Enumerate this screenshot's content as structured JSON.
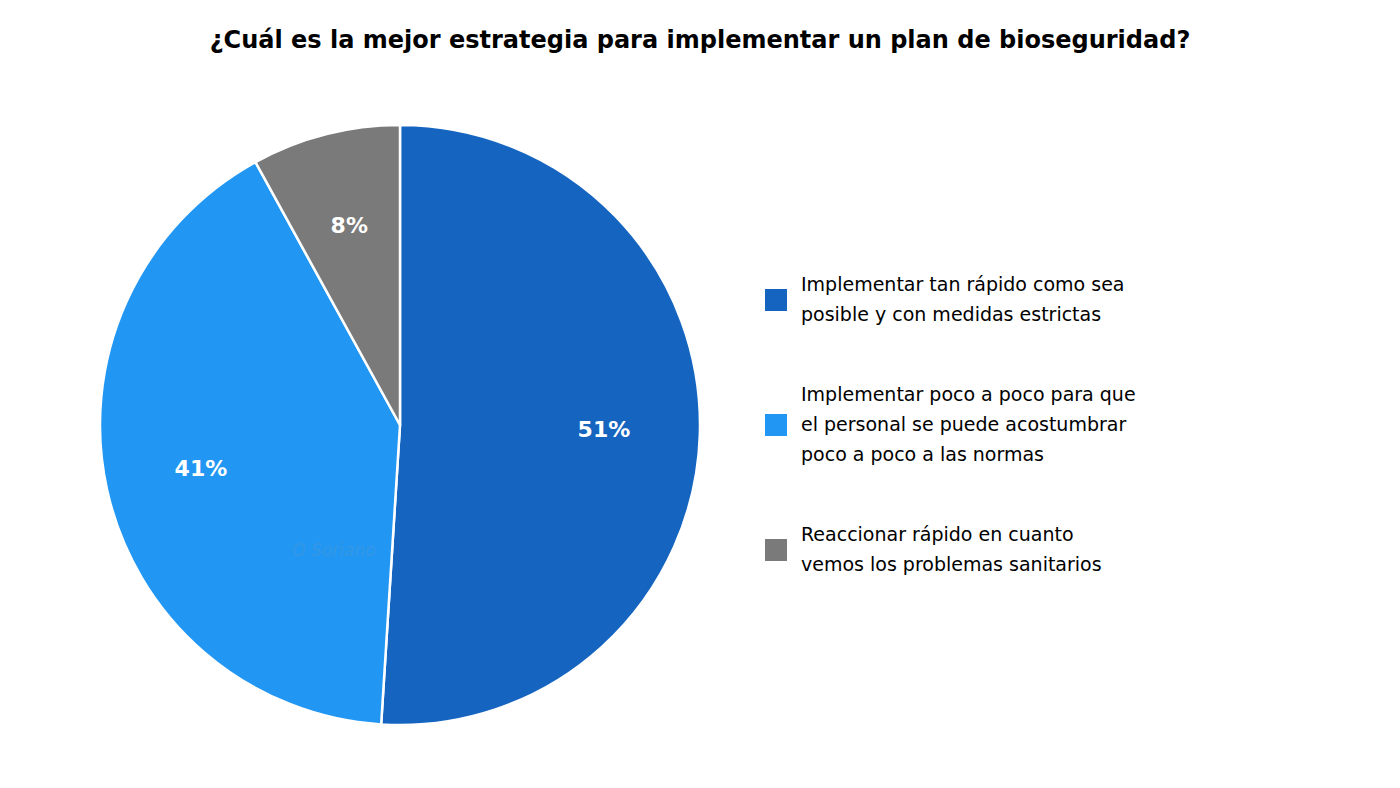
{
  "chart_data": {
    "type": "pie",
    "title": "¿Cuál es la mejor estrategia para implementar un plan de bioseguridad?",
    "categories": [
      "Implementar tan rápido como sea\nposible y con medidas estrictas",
      "Implementar poco a poco para que\nel personal se puede acostumbrar\npoco a poco a las normas",
      "Reaccionar rápido en cuanto\nvemos los problemas sanitarios"
    ],
    "values": [
      51,
      41,
      8
    ],
    "value_labels": [
      "51%",
      "41%",
      "8%"
    ],
    "colors": [
      "#1565C0",
      "#2196F3",
      "#7A7A7A"
    ],
    "data_labels": true,
    "legend": "right",
    "annotations": [
      "O Soriano"
    ]
  }
}
